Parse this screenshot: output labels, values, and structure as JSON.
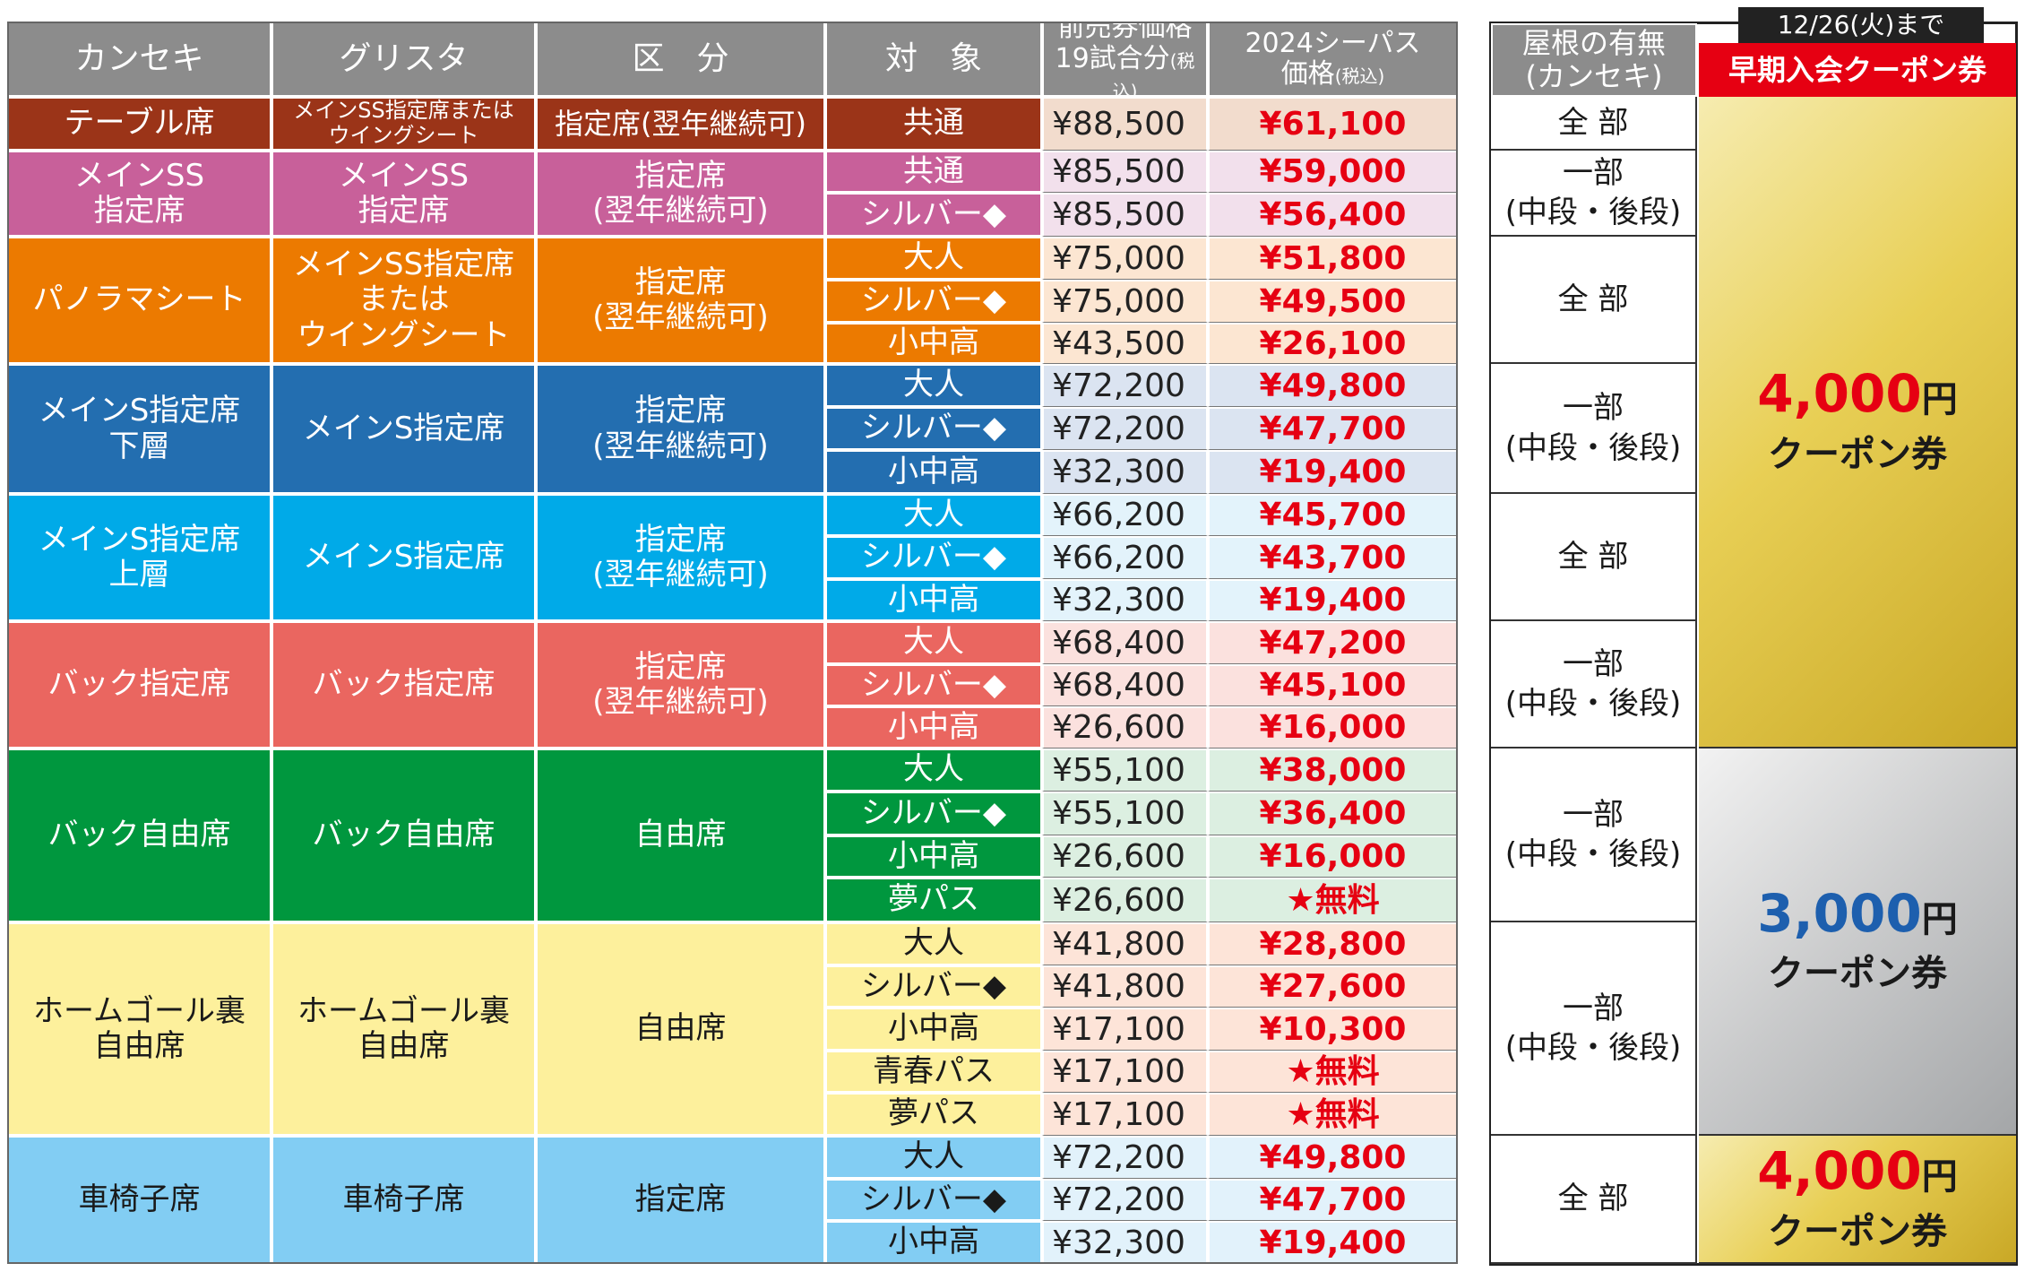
{
  "headers": {
    "kanseki": "カンセキ",
    "gurisuta": "グリスタ",
    "kubun": "区　分",
    "taisho": "対　象",
    "advance_line1": "前売券価格",
    "advance_line2": "19試合分",
    "advance_tax": "(税込)",
    "season_line1": "2024シーパス",
    "season_line2": "価格",
    "season_tax": "(税込)",
    "roof": "屋根の有無\n(カンセキ)",
    "deadline": "12/26(火)まで",
    "coupon_title": "早期入会クーポン券"
  },
  "sections": [
    {
      "kanseki": "テーブル席",
      "gurisuta": "メインSS指定席または\nウイングシート",
      "kubun": "指定席(翌年継続可)",
      "bg": "#9b3418",
      "light": "#f2dccd",
      "text_white": true,
      "rows": [
        {
          "target": "共通",
          "advance": "¥88,500",
          "season": "¥61,100"
        }
      ]
    },
    {
      "kanseki": "メインSS\n指定席",
      "gurisuta": "メインSS\n指定席",
      "kubun": "指定席\n(翌年継続可)",
      "bg": "#c8609a",
      "light": "#f2e0ec",
      "text_white": true,
      "rows": [
        {
          "target": "共通",
          "advance": "¥85,500",
          "season": "¥59,000"
        },
        {
          "target": "シルバー◆",
          "advance": "¥85,500",
          "season": "¥56,400"
        }
      ]
    },
    {
      "kanseki": "パノラマシート",
      "gurisuta": "メインSS指定席\nまたは\nウイングシート",
      "kubun": "指定席\n(翌年継続可)",
      "bg": "#ec7a00",
      "light": "#fce6d2",
      "text_white": true,
      "rows": [
        {
          "target": "大人",
          "advance": "¥75,000",
          "season": "¥51,800"
        },
        {
          "target": "シルバー◆",
          "advance": "¥75,000",
          "season": "¥49,500"
        },
        {
          "target": "小中高",
          "advance": "¥43,500",
          "season": "¥26,100"
        }
      ]
    },
    {
      "kanseki": "メインS指定席\n下層",
      "gurisuta": "メインS指定席",
      "kubun": "指定席\n(翌年継続可)",
      "bg": "#236eb0",
      "light": "#dbe4f1",
      "text_white": true,
      "rows": [
        {
          "target": "大人",
          "advance": "¥72,200",
          "season": "¥49,800"
        },
        {
          "target": "シルバー◆",
          "advance": "¥72,200",
          "season": "¥47,700"
        },
        {
          "target": "小中高",
          "advance": "¥32,300",
          "season": "¥19,400"
        }
      ]
    },
    {
      "kanseki": "メインS指定席\n上層",
      "gurisuta": "メインS指定席",
      "kubun": "指定席\n(翌年継続可)",
      "bg": "#00aae8",
      "light": "#e3f3fb",
      "text_white": true,
      "rows": [
        {
          "target": "大人",
          "advance": "¥66,200",
          "season": "¥45,700"
        },
        {
          "target": "シルバー◆",
          "advance": "¥66,200",
          "season": "¥43,700"
        },
        {
          "target": "小中高",
          "advance": "¥32,300",
          "season": "¥19,400"
        }
      ]
    },
    {
      "kanseki": "バック指定席",
      "gurisuta": "バック指定席",
      "kubun": "指定席\n(翌年継続可)",
      "bg": "#ea6660",
      "light": "#fbe1de",
      "text_white": true,
      "rows": [
        {
          "target": "大人",
          "advance": "¥68,400",
          "season": "¥47,200"
        },
        {
          "target": "シルバー◆",
          "advance": "¥68,400",
          "season": "¥45,100"
        },
        {
          "target": "小中高",
          "advance": "¥26,600",
          "season": "¥16,000"
        }
      ]
    },
    {
      "kanseki": "バック自由席",
      "gurisuta": "バック自由席",
      "kubun": "自由席",
      "bg": "#00973e",
      "light": "#dcefe1",
      "text_white": true,
      "rows": [
        {
          "target": "大人",
          "advance": "¥55,100",
          "season": "¥38,000"
        },
        {
          "target": "シルバー◆",
          "advance": "¥55,100",
          "season": "¥36,400"
        },
        {
          "target": "小中高",
          "advance": "¥26,600",
          "season": "¥16,000"
        },
        {
          "target": "夢パス",
          "advance": "¥26,600",
          "season": "★無料"
        }
      ]
    },
    {
      "kanseki": "ホームゴール裏\n自由席",
      "gurisuta": "ホームゴール裏\n自由席",
      "kubun": "自由席",
      "bg": "#fdf09c",
      "light": "#fde4d8",
      "text_white": false,
      "rows": [
        {
          "target": "大人",
          "advance": "¥41,800",
          "season": "¥28,800"
        },
        {
          "target": "シルバー◆",
          "advance": "¥41,800",
          "season": "¥27,600"
        },
        {
          "target": "小中高",
          "advance": "¥17,100",
          "season": "¥10,300"
        },
        {
          "target": "青春パス",
          "advance": "¥17,100",
          "season": "★無料"
        },
        {
          "target": "夢パス",
          "advance": "¥17,100",
          "season": "★無料"
        }
      ]
    },
    {
      "kanseki": "車椅子席",
      "gurisuta": "車椅子席",
      "kubun": "指定席",
      "bg": "#82cdf3",
      "light": "#e2f2fb",
      "text_white": false,
      "rows": [
        {
          "target": "大人",
          "advance": "¥72,200",
          "season": "¥49,800"
        },
        {
          "target": "シルバー◆",
          "advance": "¥72,200",
          "season": "¥47,700"
        },
        {
          "target": "小中高",
          "advance": "¥32,300",
          "season": "¥19,400"
        }
      ]
    }
  ],
  "roof": [
    "全 部",
    "一部\n(中段・後段)",
    "全 部",
    "一部\n(中段・後段)",
    "全 部",
    "一部\n(中段・後段)",
    "一部\n(中段・後段)",
    "一部\n(中段・後段)",
    "全 部"
  ],
  "coupons": [
    {
      "amount": "4,000",
      "yen": "円",
      "label": "クーポン券",
      "color": "#e60012",
      "style": "gold"
    },
    {
      "amount": "3,000",
      "yen": "円",
      "label": "クーポン券",
      "color": "#1d5fae",
      "style": "silver"
    },
    {
      "amount": "4,000",
      "yen": "円",
      "label": "クーポン券",
      "color": "#e60012",
      "style": "gold"
    }
  ]
}
